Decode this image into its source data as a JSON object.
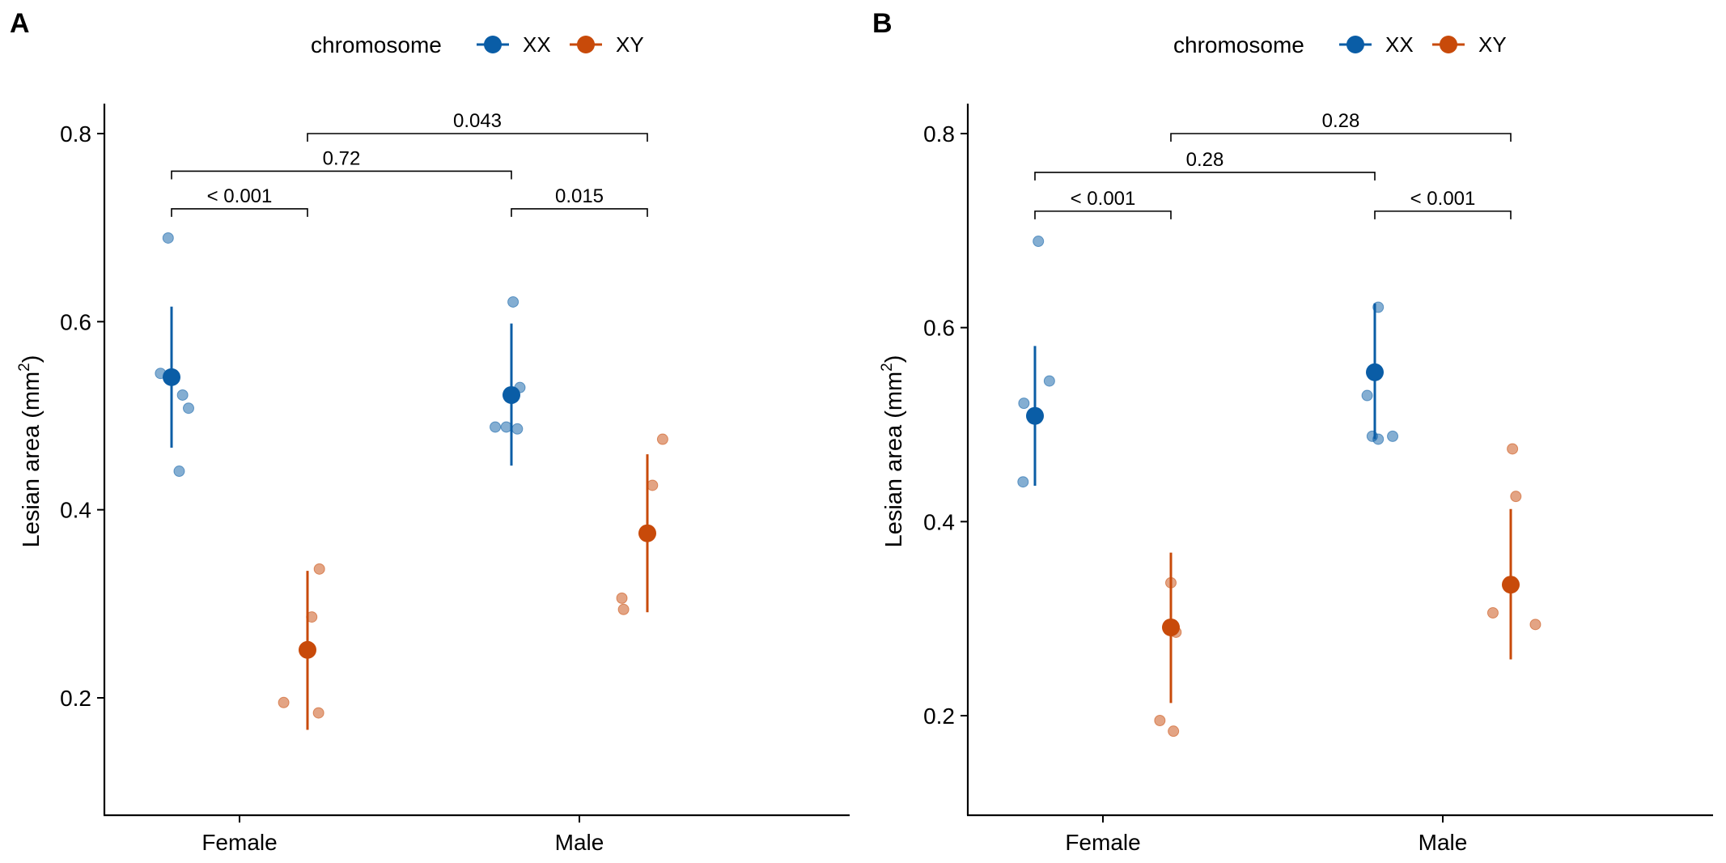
{
  "colors": {
    "XX": "#0A5DA6",
    "XY": "#C84A0A"
  },
  "chart_data": [
    {
      "type": "scatter",
      "panel_label": "A",
      "legend": {
        "title": "chromosome",
        "entries": [
          "XX",
          "XY"
        ],
        "placement": "top-center"
      },
      "ylabel": "Lesian area (mm",
      "ylabel_sup": "2",
      "ylabel_end": ")",
      "ylim": [
        0.1,
        0.83
      ],
      "yticks": [
        0.2,
        0.4,
        0.6,
        0.8
      ],
      "ytick_labels": [
        "0.2",
        "0.4",
        "0.6",
        "0.8"
      ],
      "categories": [
        "Female",
        "Male"
      ],
      "groups": [
        {
          "category": "Female",
          "chromosome": "XX",
          "mean": 0.541,
          "low": 0.466,
          "high": 0.616,
          "points": [
            [
              -0.13,
              0.545
            ],
            [
              -0.04,
              0.689
            ],
            [
              0.13,
              0.522
            ],
            [
              0.2,
              0.508
            ],
            [
              0.09,
              0.441
            ]
          ]
        },
        {
          "category": "Female",
          "chromosome": "XY",
          "mean": 0.251,
          "low": 0.166,
          "high": 0.335,
          "points": [
            [
              -0.28,
              0.195
            ],
            [
              0.05,
              0.286
            ],
            [
              0.14,
              0.337
            ],
            [
              0.13,
              0.184
            ]
          ]
        },
        {
          "category": "Male",
          "chromosome": "XX",
          "mean": 0.522,
          "low": 0.447,
          "high": 0.598,
          "points": [
            [
              -0.19,
              0.488
            ],
            [
              -0.06,
              0.488
            ],
            [
              0.02,
              0.621
            ],
            [
              0.07,
              0.486
            ],
            [
              0.1,
              0.53
            ]
          ]
        },
        {
          "category": "Male",
          "chromosome": "XY",
          "mean": 0.375,
          "low": 0.291,
          "high": 0.459,
          "points": [
            [
              -0.3,
              0.306
            ],
            [
              -0.28,
              0.294
            ],
            [
              0.06,
              0.426
            ],
            [
              0.18,
              0.475
            ]
          ]
        }
      ],
      "comparisons": [
        {
          "from": [
            "Female",
            "XX"
          ],
          "to": [
            "Female",
            "XY"
          ],
          "y": 0.72,
          "label": "< 0.001"
        },
        {
          "from": [
            "Male",
            "XX"
          ],
          "to": [
            "Male",
            "XY"
          ],
          "y": 0.72,
          "label": "0.015"
        },
        {
          "from": [
            "Female",
            "XX"
          ],
          "to": [
            "Male",
            "XX"
          ],
          "y": 0.76,
          "label": "0.72"
        },
        {
          "from": [
            "Female",
            "XY"
          ],
          "to": [
            "Male",
            "XY"
          ],
          "y": 0.8,
          "label": "0.043"
        }
      ]
    },
    {
      "type": "scatter",
      "panel_label": "B",
      "legend": {
        "title": "chromosome",
        "entries": [
          "XX",
          "XY"
        ],
        "placement": "top-center"
      },
      "ylabel": "Lesian area (mm",
      "ylabel_sup": "2",
      "ylabel_end": ")",
      "ylim": [
        0.1,
        0.833
      ],
      "yticks": [
        0.2,
        0.4,
        0.6,
        0.8
      ],
      "ytick_labels": [
        "0.2",
        "0.4",
        "0.6",
        "0.8"
      ],
      "categories": [
        "Female",
        "Male"
      ],
      "groups": [
        {
          "category": "Female",
          "chromosome": "XX",
          "mean": 0.509,
          "low": 0.437,
          "high": 0.581,
          "points": [
            [
              -0.14,
              0.441
            ],
            [
              -0.13,
              0.522
            ],
            [
              0.04,
              0.689
            ],
            [
              0.17,
              0.545
            ]
          ]
        },
        {
          "category": "Female",
          "chromosome": "XY",
          "mean": 0.291,
          "low": 0.213,
          "high": 0.368,
          "points": [
            [
              -0.13,
              0.195
            ],
            [
              0.03,
              0.184
            ],
            [
              0.0,
              0.337
            ],
            [
              0.06,
              0.286
            ]
          ]
        },
        {
          "category": "Male",
          "chromosome": "XX",
          "mean": 0.554,
          "low": 0.485,
          "high": 0.625,
          "points": [
            [
              -0.09,
              0.53
            ],
            [
              -0.03,
              0.488
            ],
            [
              0.04,
              0.485
            ],
            [
              0.04,
              0.621
            ],
            [
              0.21,
              0.488
            ]
          ]
        },
        {
          "category": "Male",
          "chromosome": "XY",
          "mean": 0.335,
          "low": 0.258,
          "high": 0.413,
          "points": [
            [
              -0.21,
              0.306
            ],
            [
              0.02,
              0.475
            ],
            [
              0.06,
              0.426
            ],
            [
              0.29,
              0.294
            ]
          ]
        }
      ],
      "comparisons": [
        {
          "from": [
            "Female",
            "XX"
          ],
          "to": [
            "Female",
            "XY"
          ],
          "y": 0.72,
          "label": "< 0.001"
        },
        {
          "from": [
            "Male",
            "XX"
          ],
          "to": [
            "Male",
            "XY"
          ],
          "y": 0.72,
          "label": "< 0.001"
        },
        {
          "from": [
            "Female",
            "XX"
          ],
          "to": [
            "Male",
            "XX"
          ],
          "y": 0.76,
          "label": "0.28"
        },
        {
          "from": [
            "Female",
            "XY"
          ],
          "to": [
            "Male",
            "XY"
          ],
          "y": 0.8,
          "label": "0.28"
        }
      ]
    }
  ]
}
